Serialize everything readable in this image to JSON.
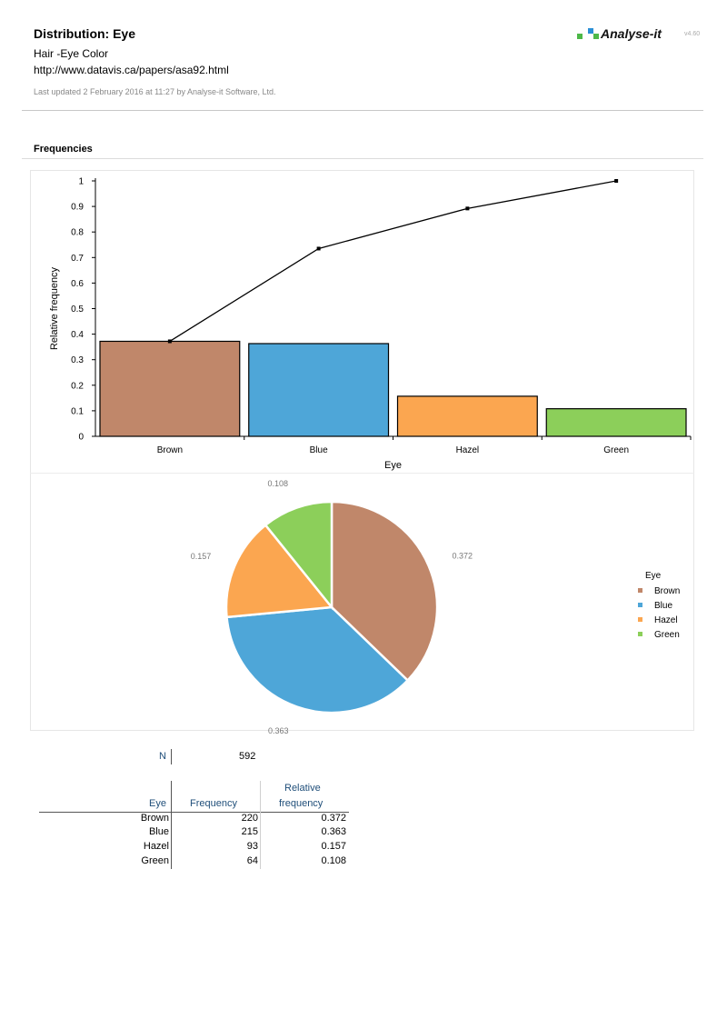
{
  "header": {
    "title": "Distribution: Eye",
    "subtitle1": "Hair -Eye Color",
    "subtitle2": "http://www.datavis.ca/papers/asa92.html",
    "updated": "Last updated 2 February 2016 at 11:27 by Analyse-it Software, Ltd."
  },
  "logo": {
    "text": "Analyse-it",
    "version": "v4.60",
    "colors": [
      "#4db848",
      "#2b8fd6",
      "#4db848"
    ]
  },
  "section": {
    "title": "Frequencies"
  },
  "chart_data": [
    {
      "type": "bar",
      "title": "",
      "categories": [
        "Brown",
        "Blue",
        "Hazel",
        "Green"
      ],
      "values": [
        0.372,
        0.363,
        0.157,
        0.108
      ],
      "cumulative": [
        0.372,
        0.735,
        0.892,
        1.0
      ],
      "colors": [
        "#c0876a",
        "#4ea6d8",
        "#fba650",
        "#8ccf5a"
      ],
      "xlabel": "Eye",
      "ylabel": "Relative frequency",
      "ylim": [
        0,
        1
      ],
      "yticks": [
        "0",
        "0.1",
        "0.2",
        "0.3",
        "0.4",
        "0.5",
        "0.6",
        "0.7",
        "0.8",
        "0.9",
        "1"
      ]
    },
    {
      "type": "pie",
      "categories": [
        "Brown",
        "Blue",
        "Hazel",
        "Green"
      ],
      "values": [
        0.372,
        0.363,
        0.157,
        0.108
      ],
      "labels": [
        "0.372",
        "0.363",
        "0.157",
        "0.108"
      ],
      "colors": [
        "#c0876a",
        "#4ea6d8",
        "#fba650",
        "#8ccf5a"
      ],
      "legend_title": "Eye",
      "legend_position": "right"
    }
  ],
  "summary": {
    "n_label": "N",
    "n_value": "592"
  },
  "table": {
    "headers": {
      "eye": "Eye",
      "freq": "Frequency",
      "rel1": "Relative",
      "rel2": "frequency"
    },
    "rows": [
      {
        "eye": "Brown",
        "freq": "220",
        "rel": "0.372"
      },
      {
        "eye": "Blue",
        "freq": "215",
        "rel": "0.363"
      },
      {
        "eye": "Hazel",
        "freq": "93",
        "rel": "0.157"
      },
      {
        "eye": "Green",
        "freq": "64",
        "rel": "0.108"
      }
    ]
  }
}
